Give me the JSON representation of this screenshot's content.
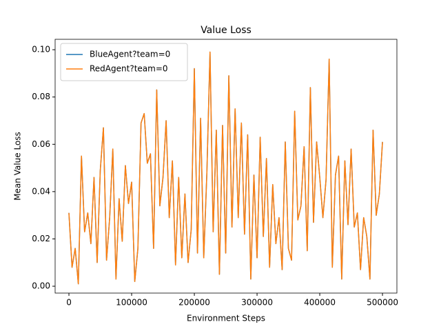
{
  "chart_data": {
    "type": "line",
    "title": "Value Loss",
    "xlabel": "Environment Steps",
    "ylabel": "Mean Value Loss",
    "x": [
      0,
      5000,
      10000,
      15000,
      20000,
      25000,
      30000,
      35000,
      40000,
      45000,
      50000,
      55000,
      60000,
      65000,
      70000,
      75000,
      80000,
      85000,
      90000,
      95000,
      100000,
      105000,
      110000,
      115000,
      120000,
      125000,
      130000,
      135000,
      140000,
      145000,
      150000,
      155000,
      160000,
      165000,
      170000,
      175000,
      180000,
      185000,
      190000,
      195000,
      200000,
      205000,
      210000,
      215000,
      220000,
      225000,
      230000,
      235000,
      240000,
      245000,
      250000,
      255000,
      260000,
      265000,
      270000,
      275000,
      280000,
      285000,
      290000,
      295000,
      300000,
      305000,
      310000,
      315000,
      320000,
      325000,
      330000,
      335000,
      340000,
      345000,
      350000,
      355000,
      360000,
      365000,
      370000,
      375000,
      380000,
      385000,
      390000,
      395000,
      400000,
      405000,
      410000,
      415000,
      420000,
      425000,
      430000,
      435000,
      440000,
      445000,
      450000,
      455000,
      460000,
      465000,
      470000,
      475000,
      480000,
      485000,
      490000,
      495000,
      500000
    ],
    "series": [
      {
        "name": "BlueAgent?team=0",
        "color": "#1f77b4",
        "values": [
          0.031,
          0.008,
          0.016,
          0.001,
          0.055,
          0.023,
          0.031,
          0.018,
          0.046,
          0.01,
          0.049,
          0.067,
          0.011,
          0.029,
          0.058,
          0.003,
          0.037,
          0.019,
          0.051,
          0.035,
          0.044,
          0.002,
          0.016,
          0.069,
          0.073,
          0.052,
          0.056,
          0.016,
          0.083,
          0.034,
          0.046,
          0.07,
          0.029,
          0.053,
          0.009,
          0.046,
          0.012,
          0.039,
          0.01,
          0.024,
          0.092,
          0.014,
          0.071,
          0.012,
          0.048,
          0.099,
          0.023,
          0.066,
          0.005,
          0.068,
          0.014,
          0.089,
          0.025,
          0.075,
          0.029,
          0.069,
          0.022,
          0.064,
          0.003,
          0.047,
          0.012,
          0.063,
          0.021,
          0.054,
          0.008,
          0.043,
          0.018,
          0.029,
          0.007,
          0.061,
          0.016,
          0.011,
          0.074,
          0.028,
          0.034,
          0.059,
          0.015,
          0.084,
          0.027,
          0.061,
          0.046,
          0.029,
          0.045,
          0.096,
          0.008,
          0.047,
          0.055,
          0.003,
          0.053,
          0.026,
          0.058,
          0.025,
          0.031,
          0.007,
          0.029,
          0.021,
          0.003,
          0.066,
          0.03,
          0.039,
          0.061
        ]
      },
      {
        "name": "RedAgent?team=0",
        "color": "#ff7f0e",
        "values": [
          0.031,
          0.008,
          0.016,
          0.001,
          0.055,
          0.023,
          0.031,
          0.018,
          0.046,
          0.01,
          0.049,
          0.067,
          0.011,
          0.029,
          0.058,
          0.003,
          0.037,
          0.019,
          0.051,
          0.035,
          0.044,
          0.002,
          0.016,
          0.069,
          0.073,
          0.052,
          0.056,
          0.016,
          0.083,
          0.034,
          0.046,
          0.07,
          0.029,
          0.053,
          0.009,
          0.046,
          0.012,
          0.039,
          0.01,
          0.024,
          0.092,
          0.014,
          0.071,
          0.012,
          0.048,
          0.099,
          0.023,
          0.066,
          0.005,
          0.068,
          0.014,
          0.089,
          0.025,
          0.075,
          0.029,
          0.069,
          0.022,
          0.064,
          0.003,
          0.047,
          0.012,
          0.063,
          0.021,
          0.054,
          0.008,
          0.043,
          0.018,
          0.029,
          0.007,
          0.061,
          0.016,
          0.011,
          0.074,
          0.028,
          0.034,
          0.059,
          0.015,
          0.084,
          0.027,
          0.061,
          0.046,
          0.029,
          0.045,
          0.096,
          0.008,
          0.047,
          0.055,
          0.003,
          0.053,
          0.026,
          0.058,
          0.025,
          0.031,
          0.007,
          0.029,
          0.021,
          0.003,
          0.066,
          0.03,
          0.039,
          0.061
        ]
      }
    ],
    "xlim": [
      -22000,
      523000
    ],
    "xticks": [
      0,
      100000,
      200000,
      300000,
      400000,
      500000
    ],
    "ylim": [
      -0.0029,
      0.1044
    ],
    "yticks": [
      {
        "value": 0,
        "label": "0.00"
      },
      {
        "value": 0.02,
        "label": "0.02"
      },
      {
        "value": 0.04,
        "label": "0.04"
      },
      {
        "value": 0.06,
        "label": "0.06"
      },
      {
        "value": 0.08,
        "label": "0.08"
      },
      {
        "value": 0.1,
        "label": "0.10"
      }
    ],
    "legend": "upper left"
  }
}
